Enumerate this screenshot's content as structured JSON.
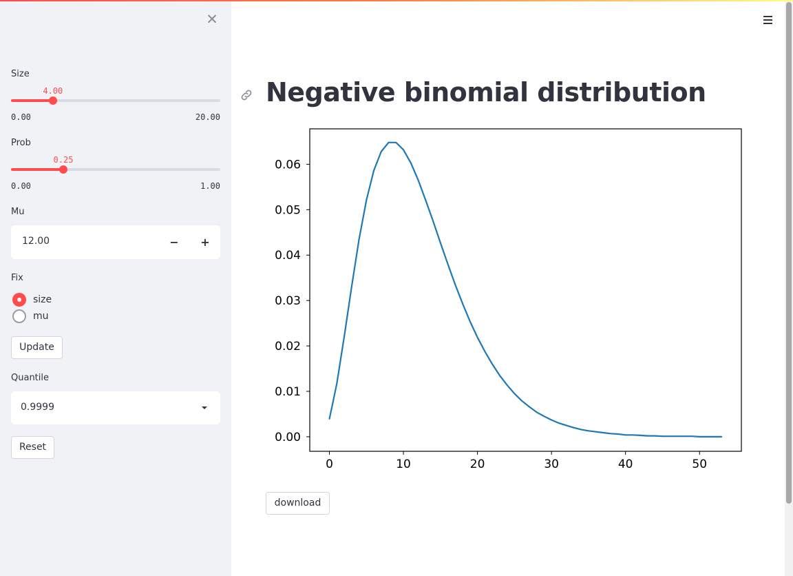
{
  "sidebar": {
    "close_label": "✕",
    "size": {
      "label": "Size",
      "value": "4.00",
      "min": "0.00",
      "max": "20.00",
      "fraction": 0.2
    },
    "prob": {
      "label": "Prob",
      "value": "0.25",
      "min": "0.00",
      "max": "1.00",
      "fraction": 0.25
    },
    "mu": {
      "label": "Mu",
      "value": "12.00",
      "minus": "−",
      "plus": "+"
    },
    "fix": {
      "label": "Fix",
      "options": [
        "size",
        "mu"
      ],
      "selected": "size"
    },
    "update_label": "Update",
    "quantile": {
      "label": "Quantile",
      "value": "0.9999"
    },
    "reset_label": "Reset"
  },
  "main": {
    "title": "Negative binomial distribution",
    "download_label": "download"
  },
  "colors": {
    "accent": "#ff4b4b",
    "line": "#1f77b4"
  },
  "icons": [
    "close-icon",
    "hamburger-menu-icon",
    "link-icon",
    "chevron-down-icon"
  ],
  "chart_data": {
    "type": "line",
    "title": "",
    "xlabel": "",
    "ylabel": "",
    "xlim": [
      -2.65,
      55.65
    ],
    "ylim": [
      -0.0032,
      0.0678
    ],
    "xticks": [
      0,
      10,
      20,
      30,
      40,
      50
    ],
    "yticks": [
      0.0,
      0.01,
      0.02,
      0.03,
      0.04,
      0.05,
      0.06
    ],
    "series": [
      {
        "x": [
          0,
          1,
          2,
          3,
          4,
          5,
          6,
          7,
          8,
          9,
          10,
          11,
          12,
          13,
          14,
          15,
          16,
          17,
          18,
          19,
          20,
          21,
          22,
          23,
          24,
          25,
          26,
          27,
          28,
          29,
          30,
          31,
          32,
          33,
          34,
          35,
          36,
          37,
          38,
          39,
          40,
          41,
          42,
          43,
          44,
          45,
          46,
          47,
          48,
          49,
          50,
          51,
          52,
          53
        ],
        "values": [
          0.0039,
          0.0117,
          0.022,
          0.033,
          0.0434,
          0.0521,
          0.0586,
          0.0628,
          0.0648,
          0.0648,
          0.0632,
          0.0603,
          0.0565,
          0.0521,
          0.0475,
          0.0427,
          0.038,
          0.0335,
          0.0293,
          0.0254,
          0.0219,
          0.0188,
          0.016,
          0.0135,
          0.0114,
          0.0095,
          0.0079,
          0.0066,
          0.0054,
          0.0045,
          0.0037,
          0.003,
          0.0025,
          0.002,
          0.0016,
          0.0013,
          0.0011,
          0.0009,
          0.0007,
          0.0006,
          0.0004,
          0.0004,
          0.0003,
          0.0002,
          0.0002,
          0.0001,
          0.0001,
          0.0001,
          0.0001,
          0.0001,
          0.0,
          0.0,
          0.0,
          0.0
        ]
      }
    ]
  }
}
